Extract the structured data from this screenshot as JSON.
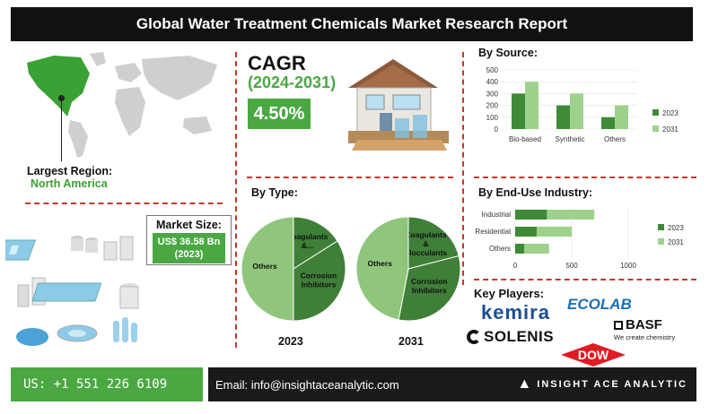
{
  "title": "Global Water Treatment Chemicals Market Research Report",
  "largest_region": {
    "label": "Largest Region:",
    "value": "North America"
  },
  "market_size": {
    "label": "Market Size:",
    "value": "US$ 36.58 Bn",
    "year": "(2023)"
  },
  "cagr": {
    "label": "CAGR",
    "period": "(2024-2031)",
    "value": "4.50%"
  },
  "by_type": {
    "label": "By Type:"
  },
  "by_source": {
    "label": "By Source:"
  },
  "by_end_use": {
    "label": "By End-Use Industry:"
  },
  "key_players": {
    "label": "Key Players:",
    "kemira": "kemira",
    "ecolab": "ECOLAB",
    "basf": "BASF",
    "basf_tagline": "We create chemistry",
    "solenis": "SOLENIS",
    "dow": "DOW"
  },
  "footer": {
    "phone": "US: +1 551 226 6109",
    "email": "Email: info@insightaceanalytic.com",
    "brand": "INSIGHT ACE ANALYTIC"
  },
  "colors": {
    "dark_green": "#3d8b37",
    "light_green": "#9ed28c",
    "pie_dark": "#3f7f38",
    "pie_light": "#8fc67c",
    "accent": "#4aa843"
  },
  "chart_data": [
    {
      "type": "bar",
      "title": "By Source:",
      "categories": [
        "Bio-based",
        "Synthetic",
        "Others"
      ],
      "series": [
        {
          "name": "2023",
          "values": [
            300,
            200,
            100
          ]
        },
        {
          "name": "2031",
          "values": [
            400,
            300,
            200
          ]
        }
      ],
      "ylim": [
        0,
        500
      ],
      "yticks": [
        0,
        100,
        200,
        300,
        400,
        500
      ],
      "legend": "right"
    },
    {
      "type": "bar",
      "orientation": "horizontal",
      "title": "By End-Use Industry:",
      "categories": [
        "Industrial",
        "Residential",
        "Others"
      ],
      "series": [
        {
          "name": "2023",
          "values": [
            280,
            190,
            80
          ]
        },
        {
          "name": "2031",
          "values": [
            700,
            500,
            300
          ]
        }
      ],
      "xlim": [
        0,
        1000
      ],
      "xticks": [
        0,
        500,
        1000
      ],
      "legend": "right"
    },
    {
      "type": "pie",
      "title": "2023",
      "slices": [
        {
          "label": "Coagulants &...",
          "value": 16
        },
        {
          "label": "Corrosion Inhibitors",
          "value": 34
        },
        {
          "label": "Others",
          "value": 50
        }
      ]
    },
    {
      "type": "pie",
      "title": "2031",
      "slices": [
        {
          "label": "Coagulants & Flocculants",
          "value": 21
        },
        {
          "label": "Corrosion Inhibitors",
          "value": 32
        },
        {
          "label": "Others",
          "value": 47
        }
      ]
    }
  ]
}
